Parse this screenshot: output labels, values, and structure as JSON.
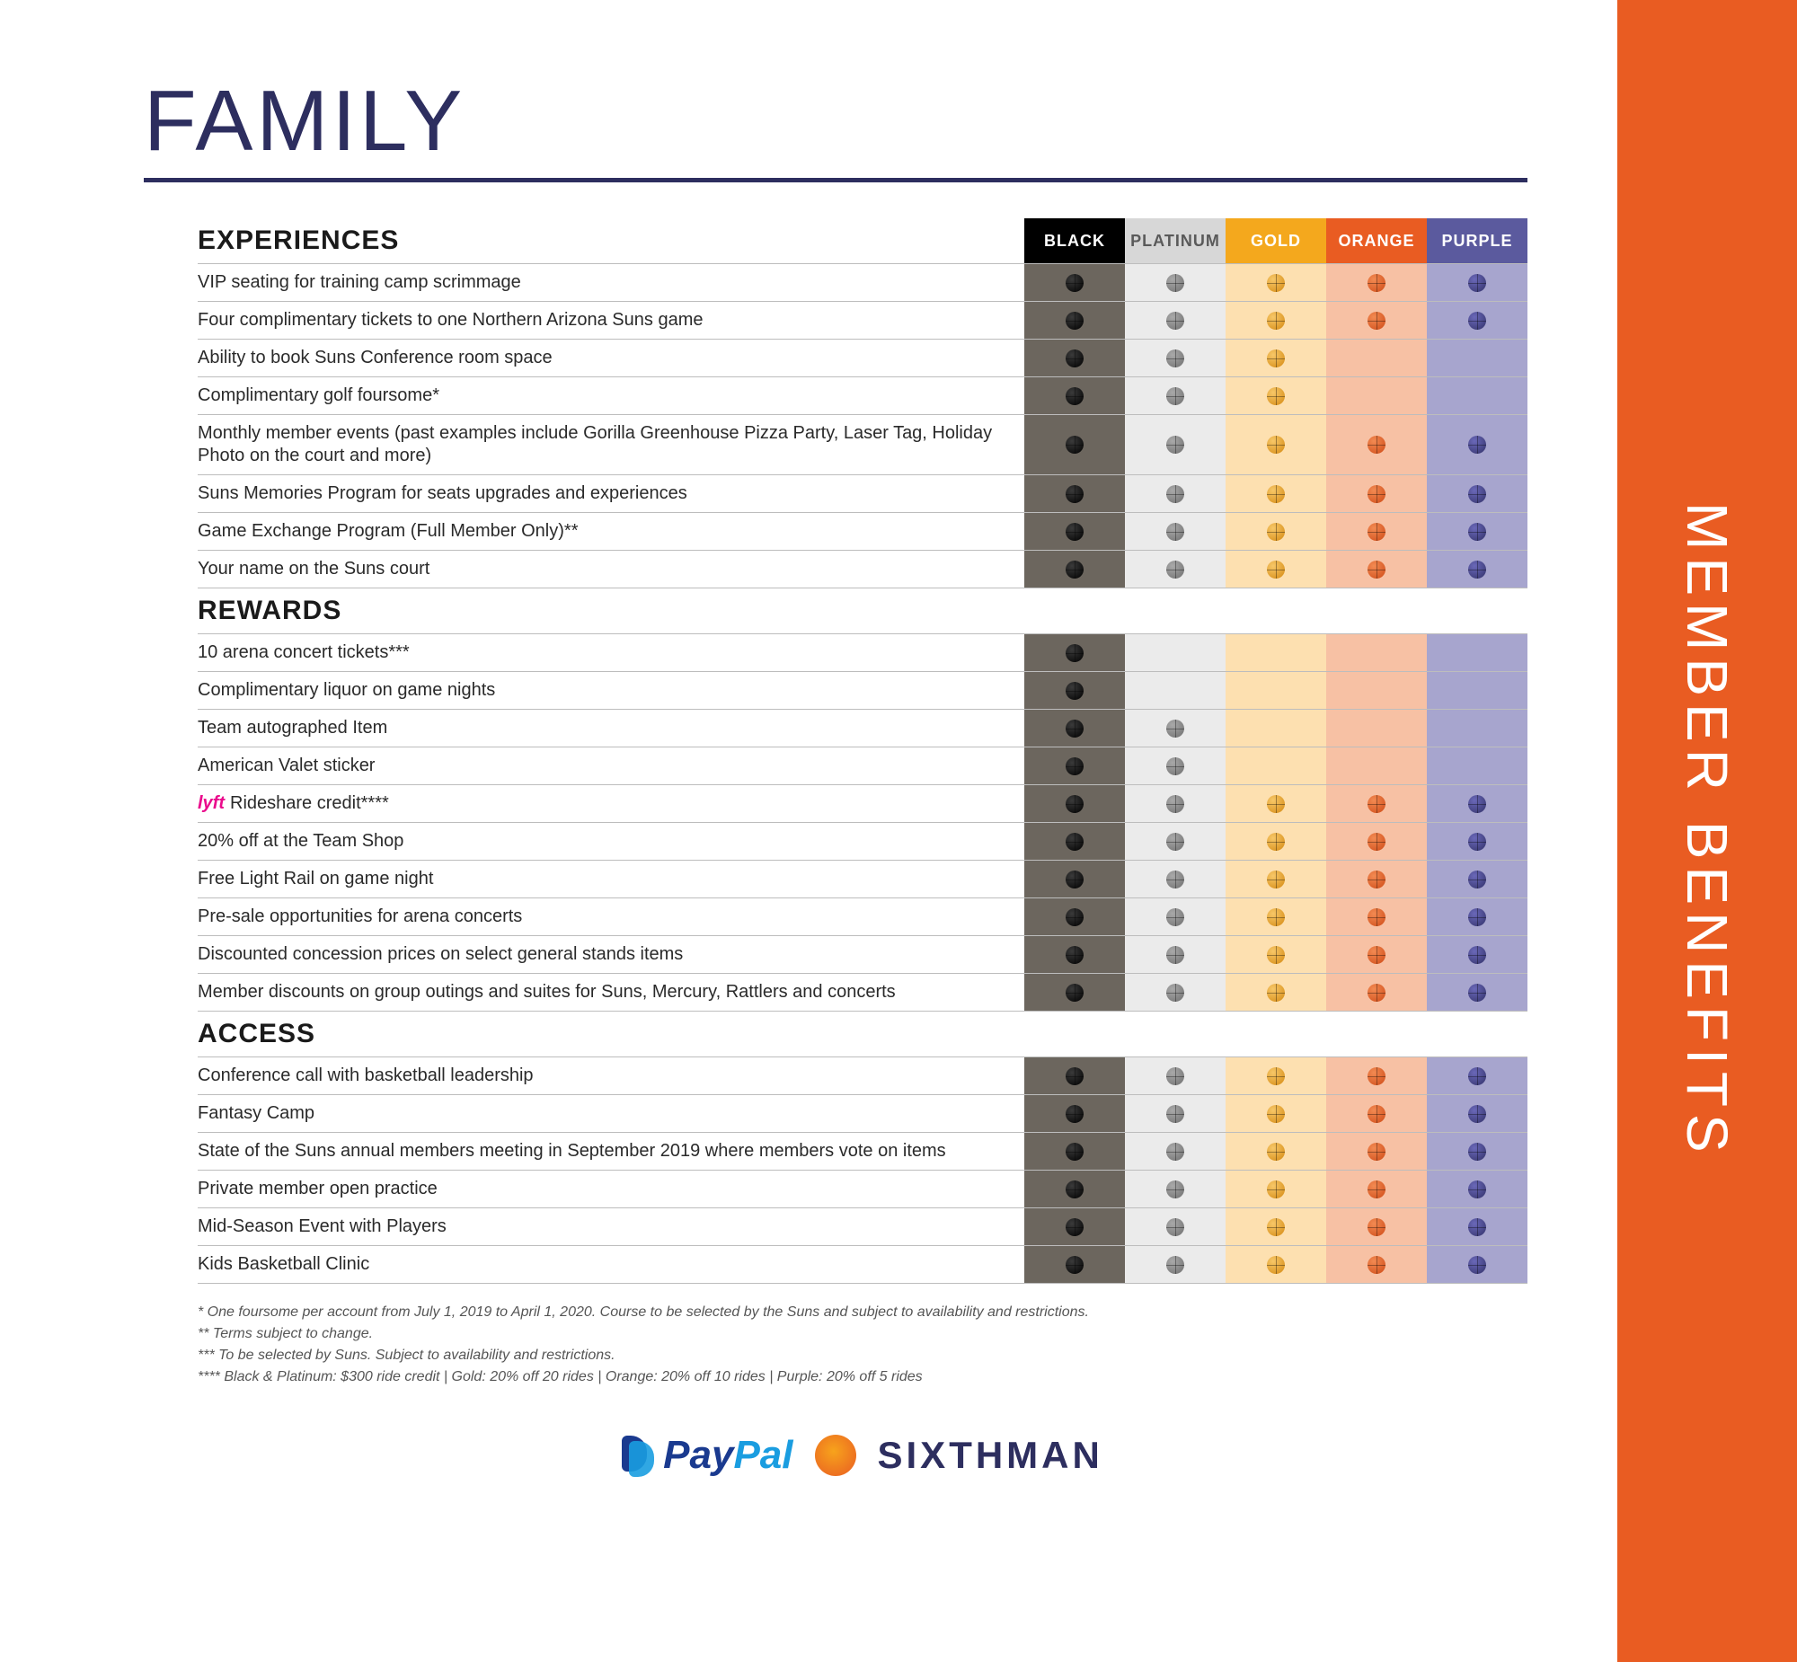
{
  "title": "FAMILY",
  "sidebar_label": "MEMBER BENEFITS",
  "tiers": [
    {
      "key": "black",
      "label": "BLACK",
      "header_bg": "#000000",
      "header_fg": "#ffffff",
      "col_bg": "#6c665e",
      "ball": "ball-black"
    },
    {
      "key": "platinum",
      "label": "PLATINUM",
      "header_bg": "#d7d7d7",
      "header_fg": "#5a5a5a",
      "col_bg": "#ebebeb",
      "ball": "ball-platinum"
    },
    {
      "key": "gold",
      "label": "GOLD",
      "header_bg": "#f4a81d",
      "header_fg": "#ffffff",
      "col_bg": "#fde0b0",
      "ball": "ball-gold"
    },
    {
      "key": "orange",
      "label": "ORANGE",
      "header_bg": "#e95c22",
      "header_fg": "#ffffff",
      "col_bg": "#f7c1a4",
      "ball": "ball-orange"
    },
    {
      "key": "purple",
      "label": "PURPLE",
      "header_bg": "#5b5a9e",
      "header_fg": "#ffffff",
      "col_bg": "#a7a5ce",
      "ball": "ball-purple"
    }
  ],
  "sections": [
    {
      "title": "EXPERIENCES",
      "show_header": true,
      "rows": [
        {
          "label": "VIP seating for training camp scrimmage",
          "tiers": [
            1,
            1,
            1,
            1,
            1
          ]
        },
        {
          "label": "Four complimentary tickets to one Northern Arizona Suns game",
          "tiers": [
            1,
            1,
            1,
            1,
            1
          ]
        },
        {
          "label": "Ability to book Suns Conference room space",
          "tiers": [
            1,
            1,
            1,
            0,
            0
          ]
        },
        {
          "label": "Complimentary golf foursome*",
          "tiers": [
            1,
            1,
            1,
            0,
            0
          ]
        },
        {
          "label": "Monthly member events (past examples include Gorilla Greenhouse Pizza Party, Laser Tag, Holiday Photo on the court and more)",
          "tiers": [
            1,
            1,
            1,
            1,
            1
          ]
        },
        {
          "label": "Suns Memories Program for seats upgrades and experiences",
          "tiers": [
            1,
            1,
            1,
            1,
            1
          ]
        },
        {
          "label": "Game Exchange Program (Full Member Only)**",
          "tiers": [
            1,
            1,
            1,
            1,
            1
          ]
        },
        {
          "label": "Your name on the Suns court",
          "tiers": [
            1,
            1,
            1,
            1,
            1
          ]
        }
      ]
    },
    {
      "title": "REWARDS",
      "show_header": false,
      "rows": [
        {
          "label": "10 arena concert tickets***",
          "tiers": [
            1,
            0,
            0,
            0,
            0
          ]
        },
        {
          "label": "Complimentary liquor on game nights",
          "tiers": [
            1,
            0,
            0,
            0,
            0
          ]
        },
        {
          "label": "Team autographed Item",
          "tiers": [
            1,
            1,
            0,
            0,
            0
          ]
        },
        {
          "label": "American Valet sticker",
          "tiers": [
            1,
            1,
            0,
            0,
            0
          ]
        },
        {
          "label": "Rideshare credit****",
          "prefix_logo": "lyft",
          "tiers": [
            1,
            1,
            1,
            1,
            1
          ]
        },
        {
          "label": "20% off at the Team Shop",
          "tiers": [
            1,
            1,
            1,
            1,
            1
          ]
        },
        {
          "label": "Free Light Rail on game night",
          "tiers": [
            1,
            1,
            1,
            1,
            1
          ]
        },
        {
          "label": "Pre-sale opportunities for arena concerts",
          "tiers": [
            1,
            1,
            1,
            1,
            1
          ]
        },
        {
          "label": "Discounted concession prices on select general stands items",
          "tiers": [
            1,
            1,
            1,
            1,
            1
          ]
        },
        {
          "label": "Member discounts on group outings and suites for Suns, Mercury, Rattlers and concerts",
          "tiers": [
            1,
            1,
            1,
            1,
            1
          ]
        }
      ]
    },
    {
      "title": "ACCESS",
      "show_header": false,
      "rows": [
        {
          "label": "Conference call with basketball leadership",
          "tiers": [
            1,
            1,
            1,
            1,
            1
          ]
        },
        {
          "label": "Fantasy Camp",
          "tiers": [
            1,
            1,
            1,
            1,
            1
          ]
        },
        {
          "label": "State of the Suns annual members meeting in September 2019 where members vote on items",
          "tiers": [
            1,
            1,
            1,
            1,
            1
          ]
        },
        {
          "label": "Private member open practice",
          "tiers": [
            1,
            1,
            1,
            1,
            1
          ]
        },
        {
          "label": "Mid-Season Event with Players",
          "tiers": [
            1,
            1,
            1,
            1,
            1
          ]
        },
        {
          "label": "Kids Basketball Clinic",
          "tiers": [
            1,
            1,
            1,
            1,
            1
          ]
        }
      ]
    }
  ],
  "footnotes": [
    "* One foursome per account from July 1, 2019 to April 1, 2020. Course to be selected by the Suns and subject to availability and restrictions.",
    "** Terms subject to change.",
    "*** To be selected by Suns. Subject to availability and restrictions.",
    "**** Black & Platinum: $300 ride credit | Gold: 20% off 20 rides | Orange: 20% off 10 rides | Purple: 20% off 5 rides"
  ],
  "logos": {
    "paypal_pay": "Pay",
    "paypal_pal": "Pal",
    "sixthman": "SIXTHMAN",
    "lyft": "lyft"
  }
}
